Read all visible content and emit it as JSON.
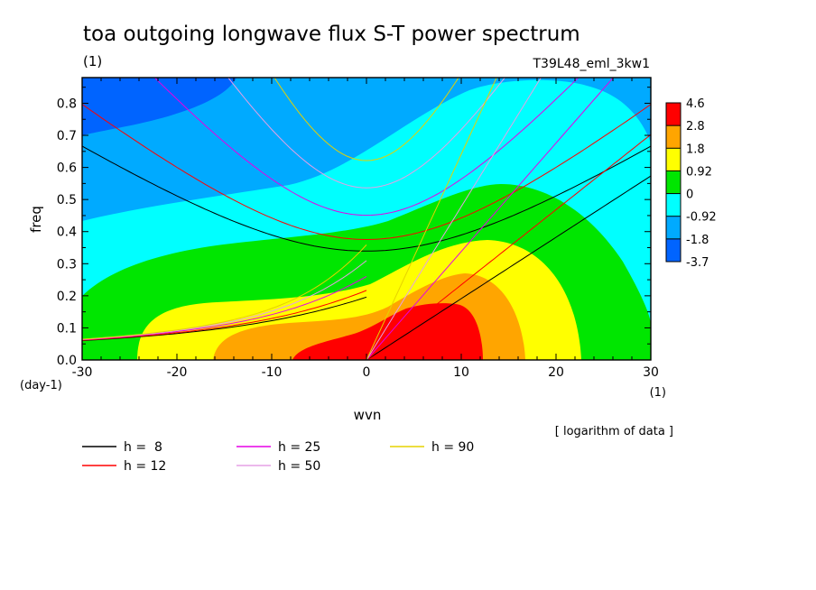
{
  "chart_data": {
    "type": "heatmap",
    "title": "toa outgoing longwave flux S-T power spectrum",
    "title_unit": "(1)",
    "subtitle_right": "T39L48_eml_3kw1",
    "xlabel": "wvn",
    "x_unit_label": "(1)",
    "ylabel": "freq",
    "y_unit_label": "(day-1)",
    "xlim": [
      -30,
      30
    ],
    "ylim": [
      0,
      0.88
    ],
    "x_ticks": [
      {
        "value": -30,
        "label": "-30"
      },
      {
        "value": -20,
        "label": "-20"
      },
      {
        "value": -10,
        "label": "-10"
      },
      {
        "value": 0,
        "label": "0"
      },
      {
        "value": 10,
        "label": "10"
      },
      {
        "value": 20,
        "label": "20"
      },
      {
        "value": 30,
        "label": "30"
      }
    ],
    "y_ticks": [
      {
        "value": 0.0,
        "label": "0.0"
      },
      {
        "value": 0.1,
        "label": "0.1"
      },
      {
        "value": 0.2,
        "label": "0.2"
      },
      {
        "value": 0.3,
        "label": "0.3"
      },
      {
        "value": 0.4,
        "label": "0.4"
      },
      {
        "value": 0.5,
        "label": "0.5"
      },
      {
        "value": 0.6,
        "label": "0.6"
      },
      {
        "value": 0.7,
        "label": "0.7"
      },
      {
        "value": 0.8,
        "label": "0.8"
      }
    ],
    "colorbar": {
      "colors": [
        "#ff0000",
        "#ffa500",
        "#ffff00",
        "#00e600",
        "#00ffff",
        "#00aaff",
        "#0064ff"
      ],
      "labels": [
        "4.6",
        "2.8",
        "1.8",
        "0.92",
        "0",
        "-0.92",
        "-1.8",
        "-3.7"
      ]
    },
    "note": "[ logarithm of data ]",
    "dispersion_curves": [
      {
        "label": "h =  8",
        "h": 8,
        "color": "#000000"
      },
      {
        "label": "h = 12",
        "h": 12,
        "color": "#ff0000"
      },
      {
        "label": "h = 25",
        "h": 25,
        "color": "#e600e6"
      },
      {
        "label": "h = 50",
        "h": 50,
        "color": "#e6a0e6"
      },
      {
        "label": "h = 90",
        "h": 90,
        "color": "#e6d200"
      }
    ]
  }
}
